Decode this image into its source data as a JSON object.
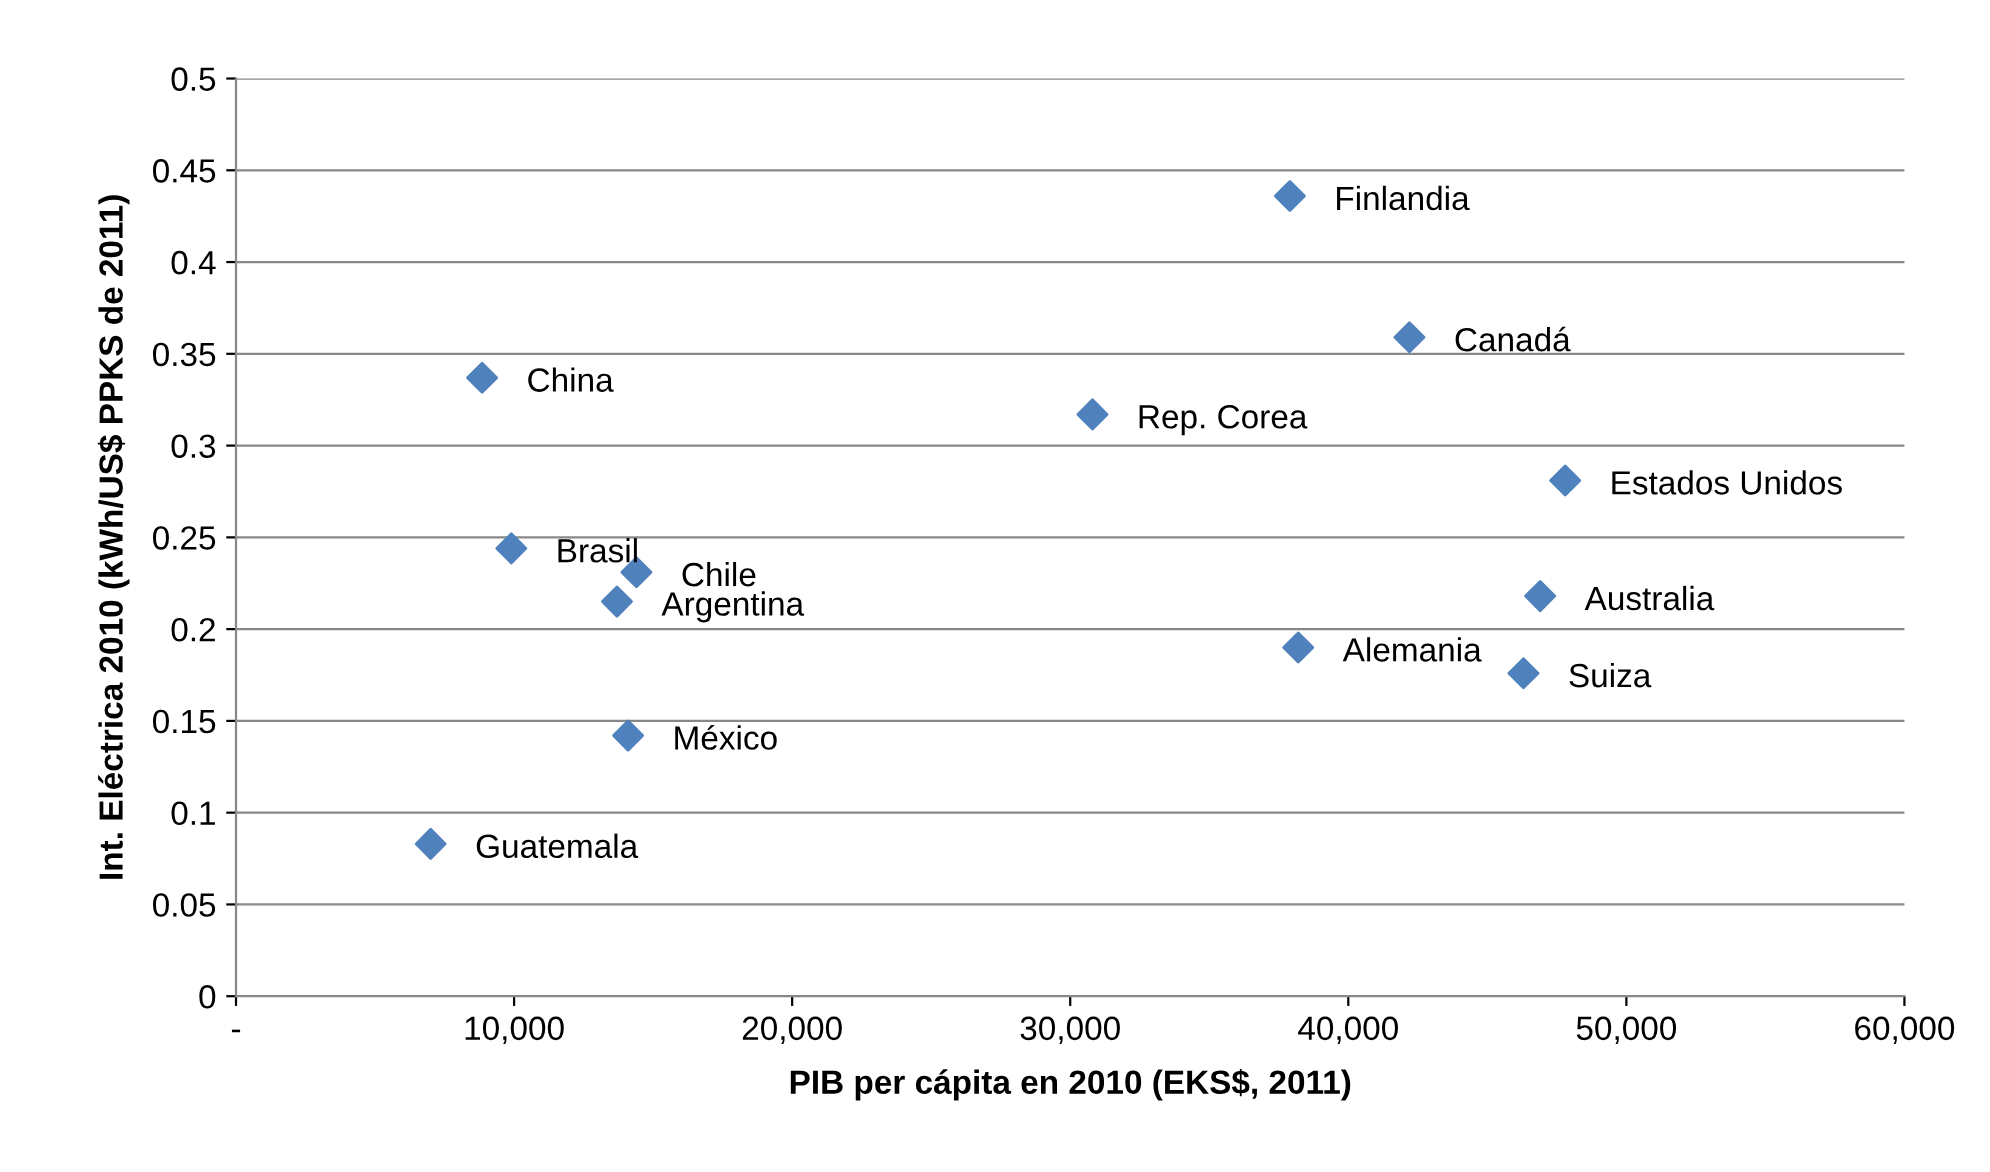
{
  "chart_data": {
    "type": "scatter",
    "xlabel": "PIB per cápita en 2010 (EKS$, 2011)",
    "ylabel": "Int. Eléctrica 2010 (kWh/US$ PPKS de 2011)",
    "x": [
      37900,
      42200,
      8850,
      30800,
      47800,
      9900,
      14400,
      13700,
      46900,
      38200,
      46300,
      14100,
      7000
    ],
    "series": [
      {
        "color": "#4f81bd",
        "values": [
          0.436,
          0.359,
          0.337,
          0.317,
          0.281,
          0.244,
          0.231,
          0.215,
          0.218,
          0.19,
          0.176,
          0.142,
          0.083
        ]
      }
    ],
    "annotations": [
      {
        "text": "Finlandia",
        "x": 37900,
        "y": 0.436
      },
      {
        "text": "Canadá",
        "x": 42200,
        "y": 0.359
      },
      {
        "text": "China",
        "x": 8850,
        "y": 0.337
      },
      {
        "text": "Rep. Corea",
        "x": 30800,
        "y": 0.317
      },
      {
        "text": "Estados Unidos",
        "x": 47800,
        "y": 0.281
      },
      {
        "text": "Brasil",
        "x": 9900,
        "y": 0.244
      },
      {
        "text": "Chile",
        "x": 14400,
        "y": 0.231
      },
      {
        "text": "Argentina",
        "x": 13700,
        "y": 0.215
      },
      {
        "text": "Australia",
        "x": 46900,
        "y": 0.218
      },
      {
        "text": "Alemania",
        "x": 38200,
        "y": 0.19
      },
      {
        "text": "Suiza",
        "x": 46300,
        "y": 0.176
      },
      {
        "text": "México",
        "x": 14100,
        "y": 0.142
      },
      {
        "text": "Guatemala",
        "x": 7000,
        "y": 0.083
      }
    ],
    "xlim": [
      0,
      60000
    ],
    "xticks": [
      {
        "value": 0,
        "label": "-"
      },
      {
        "value": 10000,
        "label": "10,000"
      },
      {
        "value": 20000,
        "label": "20,000"
      },
      {
        "value": 30000,
        "label": "30,000"
      },
      {
        "value": 40000,
        "label": "40,000"
      },
      {
        "value": 50000,
        "label": "50,000"
      },
      {
        "value": 60000,
        "label": "60,000"
      }
    ],
    "ylim": [
      0,
      0.5
    ],
    "yticks": [
      0,
      0.05,
      0.1,
      0.15,
      0.2,
      0.25,
      0.3,
      0.35,
      0.4,
      0.45,
      0.5
    ],
    "grid": "y",
    "marker": "diamond",
    "legend": false
  }
}
